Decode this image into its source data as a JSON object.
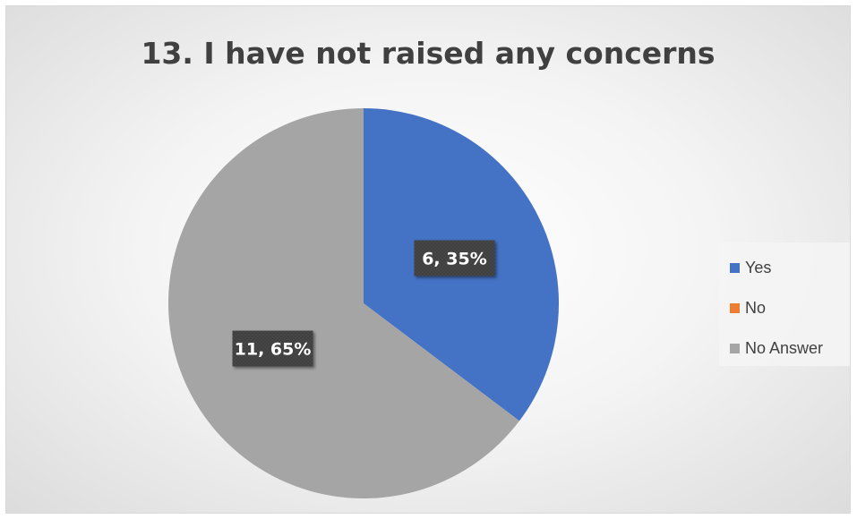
{
  "chart_data": {
    "type": "pie",
    "title": "13. I have not raised any concerns",
    "categories": [
      "Yes",
      "No",
      "No Answer"
    ],
    "values": [
      6,
      0,
      11
    ],
    "percentages": [
      "35%",
      "0%",
      "65%"
    ],
    "data_labels": [
      "6, 35%",
      "",
      "11, 65%"
    ],
    "colors": [
      "#4472c4",
      "#ed7d31",
      "#a5a5a5"
    ],
    "legend_position": "right",
    "start_angle_deg": 0,
    "direction": "clockwise"
  }
}
